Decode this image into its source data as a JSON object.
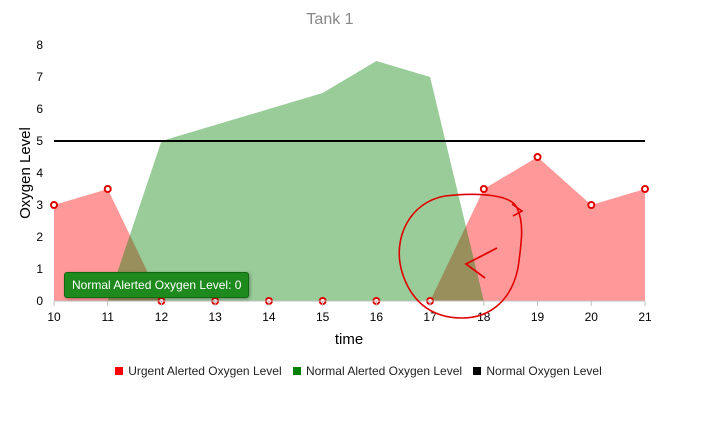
{
  "chart_data": {
    "type": "area",
    "title": "Tank 1",
    "xlabel": "time",
    "ylabel": "Oxygen Level",
    "x": [
      10,
      11,
      12,
      13,
      14,
      15,
      16,
      17,
      18,
      19,
      20,
      21
    ],
    "xlim": [
      10,
      21
    ],
    "ylim": [
      0,
      8
    ],
    "yticks": [
      0,
      1,
      2,
      3,
      4,
      5,
      6,
      7,
      8
    ],
    "grid": false,
    "legend_position": "bottom",
    "series": [
      {
        "name": "Urgent Alerted Oxygen Level",
        "type": "area",
        "color": "#ff0000",
        "points": [
          [
            10,
            3
          ],
          [
            11,
            3.5
          ],
          [
            12,
            0
          ],
          [
            13,
            0
          ],
          [
            14,
            0
          ],
          [
            15,
            0
          ],
          [
            16,
            0
          ],
          [
            17,
            0
          ],
          [
            18,
            3.5
          ],
          [
            19,
            4.5
          ],
          [
            20,
            3
          ],
          [
            21,
            3.5
          ]
        ]
      },
      {
        "name": "Normal Alerted Oxygen Level",
        "type": "area",
        "color": "#008000",
        "points": [
          [
            11,
            0
          ],
          [
            12,
            5
          ],
          [
            13,
            5.5
          ],
          [
            14,
            6
          ],
          [
            15,
            6.5
          ],
          [
            16,
            7.5
          ],
          [
            17,
            7
          ],
          [
            18,
            0
          ]
        ]
      },
      {
        "name": "Normal Oxygen Level",
        "type": "line",
        "color": "#000000",
        "points": [
          [
            10,
            5
          ],
          [
            21,
            5
          ]
        ]
      }
    ],
    "tooltip": "Normal Alerted Oxygen Level: 0"
  }
}
